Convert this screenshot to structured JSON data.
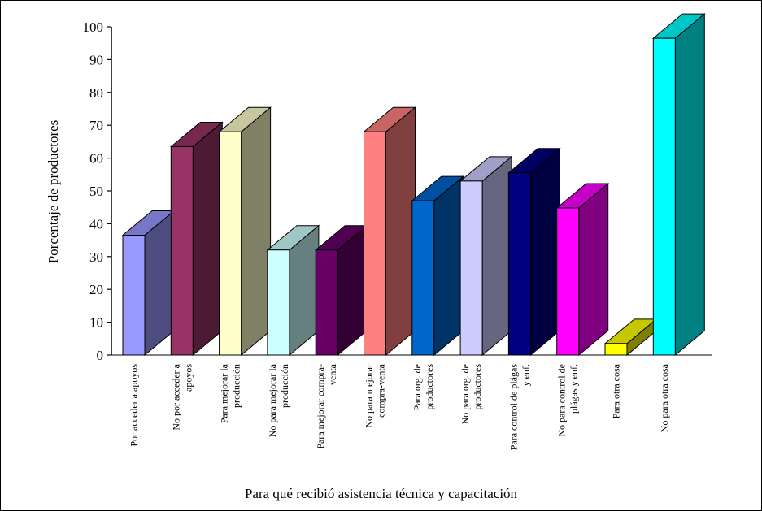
{
  "chart_data": {
    "type": "bar",
    "title": "",
    "xlabel": "Para qué recibió asistencia técnica y capacitación",
    "ylabel": "Porcentaje de productores",
    "ylim": [
      0,
      100
    ],
    "yticks": [
      0,
      10,
      20,
      30,
      40,
      50,
      60,
      70,
      80,
      90,
      100
    ],
    "grid": false,
    "legend": "none",
    "categories": [
      "Por acceder a apoyos",
      "No por acceder a apoyos",
      "Para mejorar la producción",
      "No para mejorar la producción",
      "Para mejorar compra-venta",
      "No para mejorar compra-venta",
      "Para org. de productores",
      "No para org. de productores",
      "Para control de plágas y enf.",
      "No para control de plágas y enf.",
      "Para otra cosa",
      "No para otra cosa"
    ],
    "tick_label_lines": [
      [
        "Por acceder a apoyos"
      ],
      [
        "No por acceder a",
        "apoyos"
      ],
      [
        "Para mejorar la",
        "producción"
      ],
      [
        "No para mejorar la",
        "producción"
      ],
      [
        "Para mejorar compra-",
        "venta"
      ],
      [
        "No para mejorar",
        "compra-venta"
      ],
      [
        "Para org. de",
        "productores"
      ],
      [
        "No para org. de",
        "productores"
      ],
      [
        "Para control de plágas",
        "y enf."
      ],
      [
        "No para control de",
        "plágas y enf."
      ],
      [
        "Para otra cosa"
      ],
      [
        "No para otra cosa"
      ]
    ],
    "values": [
      36.5,
      63.5,
      68,
      32,
      32,
      68,
      47,
      53,
      55.5,
      44.8,
      3.5,
      96.5
    ],
    "colors": [
      "#9999ff",
      "#993366",
      "#ffffcc",
      "#ccffff",
      "#660066",
      "#ff8080",
      "#0066cc",
      "#ccccff",
      "#000080",
      "#ff00ff",
      "#ffff00",
      "#00ffff"
    ]
  }
}
